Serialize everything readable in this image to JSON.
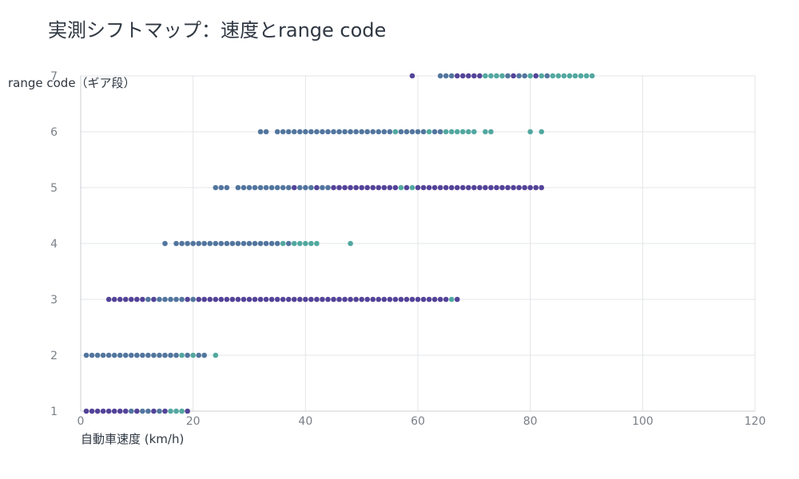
{
  "chart_data": {
    "type": "scatter",
    "title": "実測シフトマップ：速度とrange code",
    "xlabel": "自動車速度 (km/h)",
    "ylabel": "range code（ギア段）",
    "xlim": [
      0,
      120
    ],
    "ylim": [
      1,
      7
    ],
    "x_ticks": [
      0,
      20,
      40,
      60,
      80,
      100,
      120
    ],
    "y_ticks": [
      1,
      2,
      3,
      4,
      5,
      6,
      7
    ],
    "grid": true,
    "colors": {
      "dark": "#4b3a93",
      "mid": "#4a6f9a",
      "light": "#4aa39b"
    },
    "series": [
      {
        "y": 1,
        "x": [
          1,
          2,
          3,
          4,
          5,
          6,
          7,
          8,
          9,
          10,
          11,
          12,
          13,
          14,
          15,
          16,
          17,
          18,
          19
        ],
        "shade": [
          "dark",
          "dark",
          "dark",
          "dark",
          "dark",
          "dark",
          "dark",
          "dark",
          "mid",
          "dark",
          "mid",
          "mid",
          "dark",
          "mid",
          "dark",
          "light",
          "light",
          "light",
          "dark"
        ]
      },
      {
        "y": 2,
        "x": [
          1,
          2,
          3,
          4,
          5,
          6,
          7,
          8,
          9,
          10,
          11,
          12,
          13,
          14,
          15,
          16,
          17,
          18,
          19,
          20,
          21,
          22,
          24
        ],
        "shade": [
          "mid",
          "mid",
          "mid",
          "mid",
          "mid",
          "mid",
          "mid",
          "mid",
          "mid",
          "mid",
          "mid",
          "mid",
          "mid",
          "mid",
          "mid",
          "mid",
          "mid",
          "light",
          "mid",
          "light",
          "mid",
          "mid",
          "light"
        ]
      },
      {
        "y": 3,
        "x": [
          5,
          6,
          7,
          8,
          9,
          10,
          11,
          12,
          13,
          14,
          15,
          16,
          17,
          18,
          19,
          20,
          21,
          22,
          23,
          24,
          25,
          26,
          27,
          28,
          29,
          30,
          31,
          32,
          33,
          34,
          35,
          36,
          37,
          38,
          39,
          40,
          41,
          42,
          43,
          44,
          45,
          46,
          47,
          48,
          49,
          50,
          51,
          52,
          53,
          54,
          55,
          56,
          57,
          58,
          59,
          60,
          61,
          62,
          63,
          64,
          65,
          66,
          67
        ],
        "shade": [
          "dark",
          "dark",
          "dark",
          "dark",
          "dark",
          "dark",
          "dark",
          "mid",
          "dark",
          "mid",
          "mid",
          "mid",
          "mid",
          "mid",
          "dark",
          "mid",
          "dark",
          "dark",
          "dark",
          "dark",
          "dark",
          "dark",
          "dark",
          "dark",
          "dark",
          "dark",
          "dark",
          "dark",
          "dark",
          "dark",
          "dark",
          "dark",
          "dark",
          "dark",
          "dark",
          "dark",
          "dark",
          "dark",
          "dark",
          "dark",
          "dark",
          "dark",
          "dark",
          "dark",
          "dark",
          "dark",
          "dark",
          "dark",
          "dark",
          "dark",
          "dark",
          "dark",
          "dark",
          "dark",
          "dark",
          "dark",
          "dark",
          "dark",
          "dark",
          "dark",
          "dark",
          "light",
          "dark"
        ]
      },
      {
        "y": 4,
        "x": [
          15,
          17,
          18,
          19,
          20,
          21,
          22,
          23,
          24,
          25,
          26,
          27,
          28,
          29,
          30,
          31,
          32,
          33,
          34,
          35,
          36,
          37,
          38,
          39,
          40,
          41,
          42,
          48
        ],
        "shade": [
          "mid",
          "mid",
          "mid",
          "mid",
          "mid",
          "mid",
          "mid",
          "mid",
          "mid",
          "mid",
          "mid",
          "mid",
          "mid",
          "mid",
          "mid",
          "mid",
          "mid",
          "mid",
          "mid",
          "mid",
          "light",
          "mid",
          "light",
          "light",
          "light",
          "light",
          "light",
          "light"
        ]
      },
      {
        "y": 5,
        "x": [
          24,
          25,
          26,
          28,
          29,
          30,
          31,
          32,
          33,
          34,
          35,
          36,
          37,
          38,
          39,
          40,
          41,
          42,
          43,
          44,
          45,
          46,
          47,
          48,
          49,
          50,
          51,
          52,
          53,
          54,
          55,
          56,
          57,
          58,
          59,
          60,
          61,
          62,
          63,
          64,
          65,
          66,
          67,
          68,
          69,
          70,
          71,
          72,
          73,
          74,
          75,
          76,
          77,
          78,
          79,
          80,
          81,
          82
        ],
        "shade": [
          "mid",
          "mid",
          "mid",
          "mid",
          "mid",
          "mid",
          "mid",
          "mid",
          "mid",
          "mid",
          "mid",
          "mid",
          "mid",
          "dark",
          "mid",
          "mid",
          "mid",
          "dark",
          "mid",
          "mid",
          "dark",
          "dark",
          "dark",
          "dark",
          "dark",
          "dark",
          "dark",
          "dark",
          "dark",
          "dark",
          "dark",
          "dark",
          "light",
          "dark",
          "light",
          "dark",
          "dark",
          "dark",
          "dark",
          "dark",
          "dark",
          "dark",
          "dark",
          "dark",
          "dark",
          "dark",
          "dark",
          "dark",
          "dark",
          "dark",
          "dark",
          "dark",
          "dark",
          "dark",
          "dark",
          "dark",
          "dark",
          "dark"
        ]
      },
      {
        "y": 6,
        "x": [
          32,
          33,
          35,
          36,
          37,
          38,
          39,
          40,
          41,
          42,
          43,
          44,
          45,
          46,
          47,
          48,
          49,
          50,
          51,
          52,
          53,
          54,
          55,
          56,
          57,
          58,
          59,
          60,
          61,
          62,
          63,
          64,
          65,
          66,
          67,
          68,
          69,
          70,
          72,
          73,
          80,
          82
        ],
        "shade": [
          "mid",
          "mid",
          "mid",
          "mid",
          "mid",
          "mid",
          "mid",
          "mid",
          "mid",
          "mid",
          "mid",
          "mid",
          "mid",
          "mid",
          "mid",
          "mid",
          "mid",
          "mid",
          "mid",
          "mid",
          "mid",
          "mid",
          "mid",
          "light",
          "mid",
          "mid",
          "mid",
          "mid",
          "mid",
          "light",
          "mid",
          "mid",
          "light",
          "light",
          "light",
          "light",
          "light",
          "light",
          "light",
          "light",
          "light",
          "light"
        ]
      },
      {
        "y": 7,
        "x": [
          59,
          64,
          65,
          66,
          67,
          68,
          69,
          70,
          71,
          72,
          73,
          74,
          75,
          76,
          77,
          78,
          79,
          80,
          81,
          82,
          83,
          84,
          85,
          86,
          87,
          88,
          89,
          90,
          91
        ],
        "shade": [
          "dark",
          "mid",
          "mid",
          "mid",
          "dark",
          "dark",
          "dark",
          "dark",
          "dark",
          "light",
          "light",
          "light",
          "light",
          "mid",
          "dark",
          "mid",
          "mid",
          "light",
          "dark",
          "light",
          "mid",
          "light",
          "light",
          "light",
          "light",
          "light",
          "light",
          "light",
          "light"
        ]
      }
    ]
  }
}
